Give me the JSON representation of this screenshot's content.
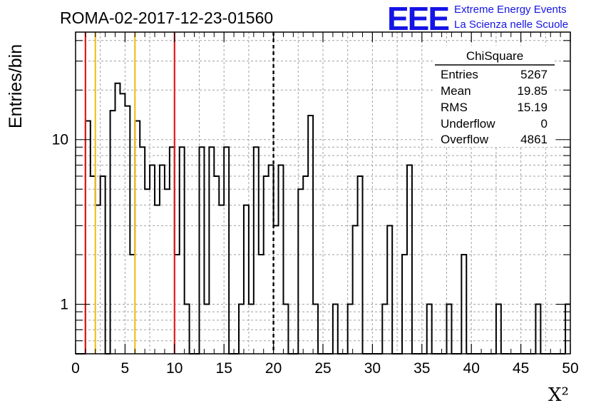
{
  "header": {
    "title": "ROMA-02-2017-12-23-01560",
    "logo_text": "EEE",
    "logo_line1": "Extreme Energy Events",
    "logo_line2": "La Scienza nelle Scuole"
  },
  "stats_box": {
    "title": "ChiSquare",
    "rows": [
      {
        "label": "Entries",
        "value": "5267"
      },
      {
        "label": "Mean",
        "value": "19.85"
      },
      {
        "label": "RMS",
        "value": "15.19"
      },
      {
        "label": "Underflow",
        "value": "0"
      },
      {
        "label": "Overflow",
        "value": "4861"
      }
    ]
  },
  "colors": {
    "histogram": "#000000",
    "grid": "#a0a0a0",
    "red_line": "#e01a1a",
    "yellow_line": "#f0c020",
    "dashed_line": "#000000",
    "logo": "#1414e6"
  },
  "chart_data": {
    "type": "bar",
    "title": "ROMA-02-2017-12-23-01560",
    "xlabel": "X²",
    "ylabel": "Entries/bin",
    "xlim": [
      0,
      50
    ],
    "ylim": [
      0.5,
      45
    ],
    "yscale": "log",
    "grid": true,
    "bin_width": 0.5,
    "x_ticks": [
      "0",
      "5",
      "10",
      "15",
      "20",
      "25",
      "30",
      "35",
      "40",
      "45",
      "50"
    ],
    "y_ticks": [
      {
        "value": 1,
        "label": "1"
      },
      {
        "value": 10,
        "label": "10"
      }
    ],
    "bin_edges_start": 0,
    "values": [
      0,
      0,
      13,
      6,
      4,
      6,
      0,
      15,
      22,
      19,
      16,
      2,
      13,
      9,
      5,
      7,
      4,
      7,
      5,
      9,
      2,
      9,
      1,
      0,
      0,
      9,
      1,
      9,
      6,
      4,
      9,
      0,
      0,
      1,
      4,
      1,
      9,
      2,
      6,
      7,
      3,
      7,
      1,
      0,
      0,
      5,
      6,
      14,
      1,
      0,
      0,
      0,
      1,
      0,
      0,
      1,
      3,
      6,
      0,
      0,
      0,
      0,
      1,
      3,
      0,
      0,
      2,
      7,
      0,
      0,
      0,
      1,
      0,
      0,
      0,
      1,
      0,
      0,
      2,
      0,
      0,
      0,
      0,
      0,
      0,
      1,
      0,
      0,
      0,
      0,
      0,
      0,
      0,
      1,
      0,
      0,
      0,
      0,
      0,
      1
    ],
    "stats": {
      "entries": 5267,
      "mean": 19.85,
      "rms": 15.19,
      "underflow": 0,
      "overflow": 4861
    },
    "vertical_lines": [
      {
        "x": 1,
        "style": "solid",
        "color": "#e01a1a"
      },
      {
        "x": 10,
        "style": "solid",
        "color": "#e01a1a"
      },
      {
        "x": 2,
        "style": "solid",
        "color": "#f0c020"
      },
      {
        "x": 6,
        "style": "solid",
        "color": "#f0c020"
      },
      {
        "x": 20,
        "style": "dashed",
        "color": "#000000"
      }
    ]
  }
}
